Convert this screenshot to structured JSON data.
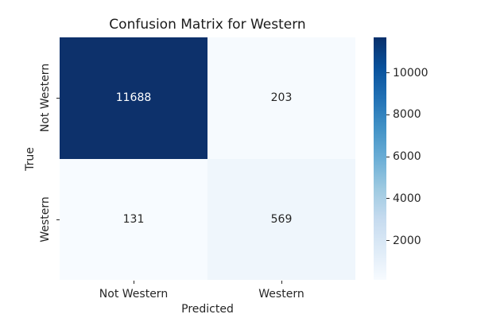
{
  "chart_data": {
    "type": "heatmap",
    "title": "Confusion Matrix for Western",
    "xlabel": "Predicted",
    "ylabel": "True",
    "x_categories": [
      "Not Western",
      "Western"
    ],
    "y_categories": [
      "Not Western",
      "Western"
    ],
    "matrix": [
      [
        11688,
        203
      ],
      [
        131,
        569
      ]
    ],
    "cell_colors": [
      [
        "#0d316b",
        "#f6fafe"
      ],
      [
        "#f7fbff",
        "#eff6fc"
      ]
    ],
    "cell_text_colors": [
      [
        "#ffffff",
        "#262626"
      ],
      [
        "#262626",
        "#262626"
      ]
    ],
    "colormap": "Blues",
    "colormap_stops": [
      "#f7fbff",
      "#deebf7",
      "#c6dbef",
      "#9ecae1",
      "#6baed6",
      "#4292c6",
      "#2171b5",
      "#08519c",
      "#08306b"
    ],
    "vmin": 131,
    "vmax": 11688,
    "colorbar_ticks": [
      2000,
      4000,
      6000,
      8000,
      10000
    ],
    "legend_position": "right",
    "grid": false
  },
  "colors": {
    "background": "#ffffff",
    "text": "#262626",
    "title": "#1a1a1a",
    "max_cell": "#0d316b"
  }
}
